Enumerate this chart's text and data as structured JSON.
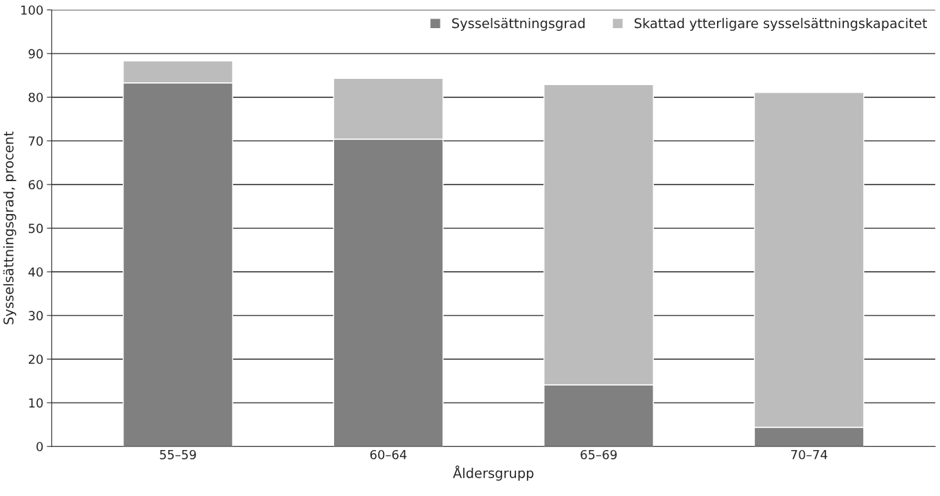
{
  "chart_data": {
    "type": "bar",
    "stacked": true,
    "xlabel": "Åldersgrupp",
    "ylabel": "Sysselsättningsgrad, procent",
    "categories": [
      "55–59",
      "60–64",
      "65–69",
      "70–74"
    ],
    "series": [
      {
        "name": "Sysselsättningsgrad",
        "color": "#808080",
        "values": [
          83.3,
          70.4,
          14.1,
          4.4
        ]
      },
      {
        "name": "Skattad ytterligare sysselsättningskapacitet",
        "color": "#bdbcbc",
        "values": [
          5.0,
          13.9,
          68.8,
          76.7
        ]
      }
    ],
    "ylim": [
      0,
      100
    ],
    "yticks": [
      0,
      10,
      20,
      30,
      40,
      50,
      60,
      70,
      80,
      90,
      100
    ],
    "grid": "y",
    "legend": "top right"
  }
}
